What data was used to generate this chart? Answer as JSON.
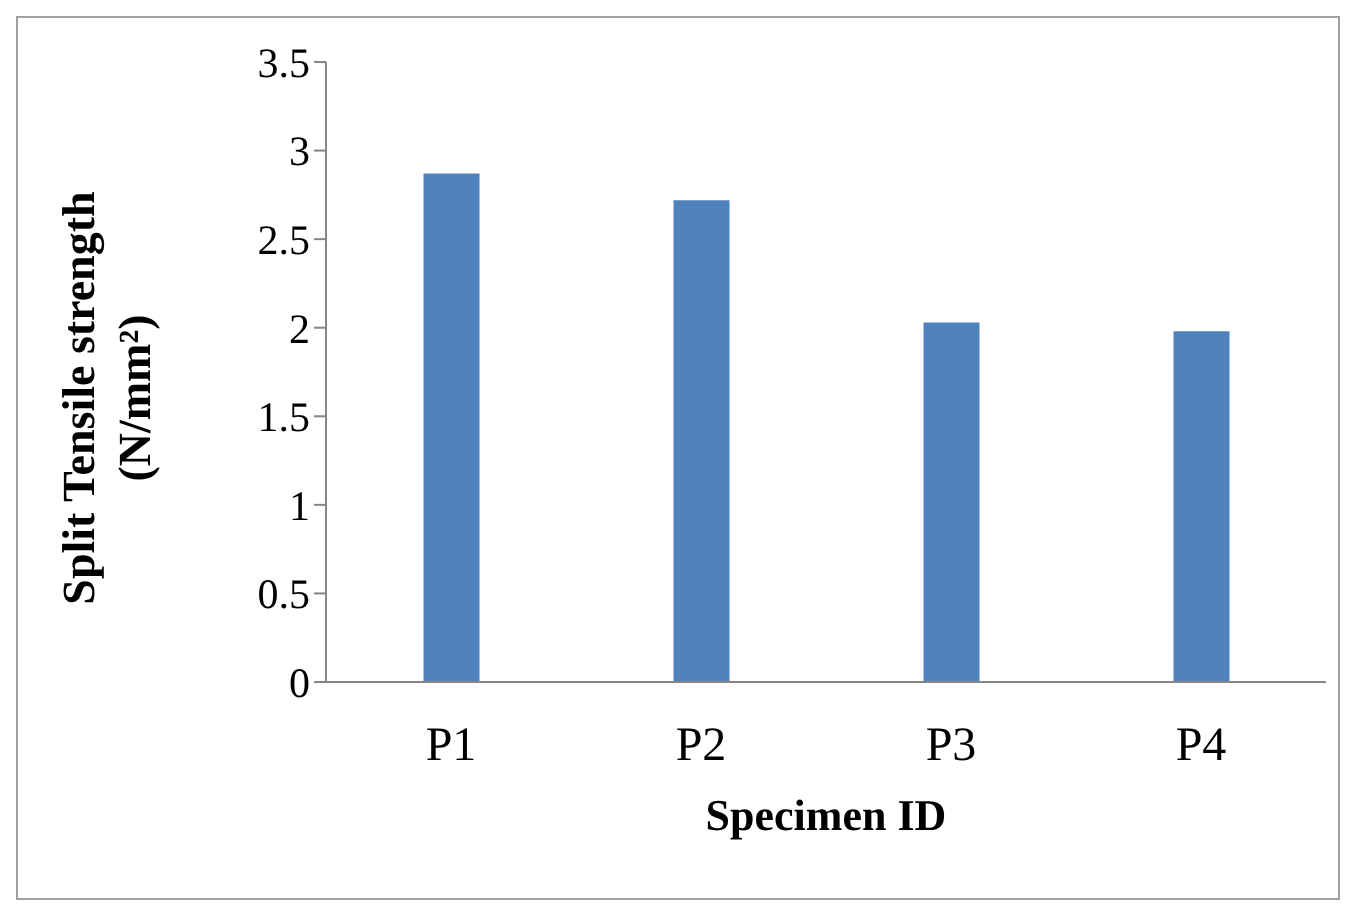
{
  "chart_data": {
    "type": "bar",
    "xlabel": "Specimen ID",
    "ylabel": "Split Tensile strength (N/mm²)",
    "categories": [
      "P1",
      "P2",
      "P3",
      "P4"
    ],
    "values": [
      2.87,
      2.72,
      2.03,
      1.98
    ],
    "color": "#4f81bd",
    "ylim": [
      0,
      3.5
    ],
    "yticks": [
      0,
      0.5,
      1,
      1.5,
      2,
      2.5,
      3,
      3.5
    ],
    "grid": false,
    "legend": false
  }
}
